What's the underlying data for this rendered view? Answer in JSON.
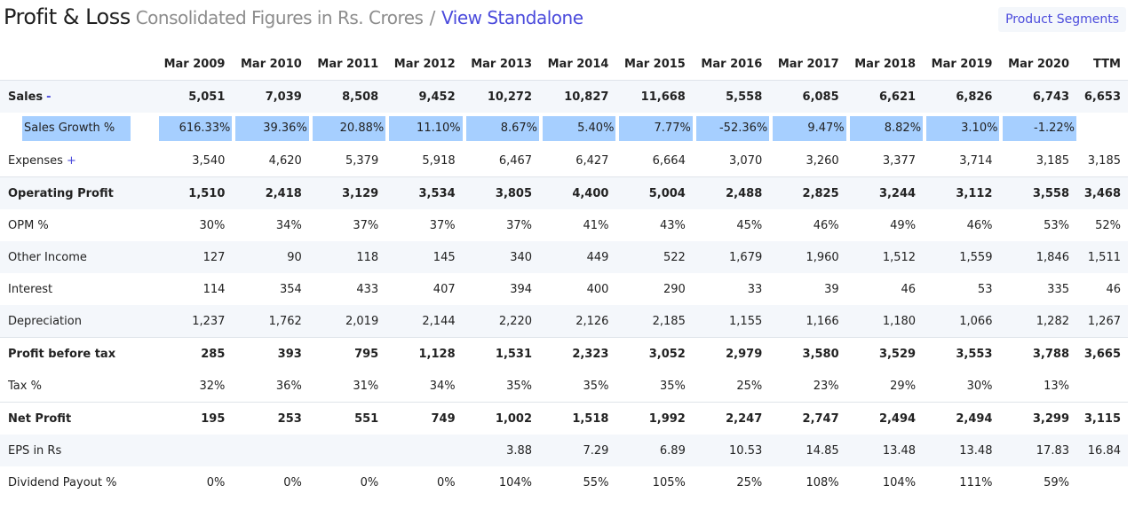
{
  "header": {
    "title": "Profit & Loss",
    "subtitle": "Consolidated Figures in Rs. Crores",
    "separator": "/",
    "link": "View Standalone",
    "segments_button": "Product Segments"
  },
  "table": {
    "columns": [
      "Mar 2009",
      "Mar 2010",
      "Mar 2011",
      "Mar 2012",
      "Mar 2013",
      "Mar 2014",
      "Mar 2015",
      "Mar 2016",
      "Mar 2017",
      "Mar 2018",
      "Mar 2019",
      "Mar 2020",
      "TTM"
    ],
    "rows": [
      {
        "label": "Sales",
        "toggle": "-",
        "values": [
          "5,051",
          "7,039",
          "8,508",
          "9,452",
          "10,272",
          "10,827",
          "11,668",
          "5,558",
          "6,085",
          "6,621",
          "6,826",
          "6,743",
          "6,653"
        ]
      },
      {
        "label": "Sales Growth %",
        "values": [
          "616.33%",
          "39.36%",
          "20.88%",
          "11.10%",
          "8.67%",
          "5.40%",
          "7.77%",
          "-52.36%",
          "9.47%",
          "8.82%",
          "3.10%",
          "-1.22%",
          ""
        ]
      },
      {
        "label": "Expenses",
        "toggle": "+",
        "values": [
          "3,540",
          "4,620",
          "5,379",
          "5,918",
          "6,467",
          "6,427",
          "6,664",
          "3,070",
          "3,260",
          "3,377",
          "3,714",
          "3,185",
          "3,185"
        ]
      },
      {
        "label": "Operating Profit",
        "values": [
          "1,510",
          "2,418",
          "3,129",
          "3,534",
          "3,805",
          "4,400",
          "5,004",
          "2,488",
          "2,825",
          "3,244",
          "3,112",
          "3,558",
          "3,468"
        ]
      },
      {
        "label": "OPM %",
        "values": [
          "30%",
          "34%",
          "37%",
          "37%",
          "37%",
          "41%",
          "43%",
          "45%",
          "46%",
          "49%",
          "46%",
          "53%",
          "52%"
        ]
      },
      {
        "label": "Other Income",
        "values": [
          "127",
          "90",
          "118",
          "145",
          "340",
          "449",
          "522",
          "1,679",
          "1,960",
          "1,512",
          "1,559",
          "1,846",
          "1,511"
        ]
      },
      {
        "label": "Interest",
        "values": [
          "114",
          "354",
          "433",
          "407",
          "394",
          "400",
          "290",
          "33",
          "39",
          "46",
          "53",
          "335",
          "46"
        ]
      },
      {
        "label": "Depreciation",
        "values": [
          "1,237",
          "1,762",
          "2,019",
          "2,144",
          "2,220",
          "2,126",
          "2,185",
          "1,155",
          "1,166",
          "1,180",
          "1,066",
          "1,282",
          "1,267"
        ]
      },
      {
        "label": "Profit before tax",
        "values": [
          "285",
          "393",
          "795",
          "1,128",
          "1,531",
          "2,323",
          "3,052",
          "2,979",
          "3,580",
          "3,529",
          "3,553",
          "3,788",
          "3,665"
        ]
      },
      {
        "label": "Tax %",
        "values": [
          "32%",
          "36%",
          "31%",
          "34%",
          "35%",
          "35%",
          "35%",
          "25%",
          "23%",
          "29%",
          "30%",
          "13%",
          ""
        ]
      },
      {
        "label": "Net Profit",
        "values": [
          "195",
          "253",
          "551",
          "749",
          "1,002",
          "1,518",
          "1,992",
          "2,247",
          "2,747",
          "2,494",
          "2,494",
          "3,299",
          "3,115"
        ]
      },
      {
        "label": "EPS in Rs",
        "values": [
          "",
          "",
          "",
          "",
          "3.88",
          "7.29",
          "6.89",
          "10.53",
          "14.85",
          "13.48",
          "13.48",
          "17.83",
          "16.84"
        ]
      },
      {
        "label": "Dividend Payout %",
        "values": [
          "0%",
          "0%",
          "0%",
          "0%",
          "104%",
          "55%",
          "105%",
          "25%",
          "108%",
          "104%",
          "111%",
          "59%",
          ""
        ]
      }
    ]
  }
}
